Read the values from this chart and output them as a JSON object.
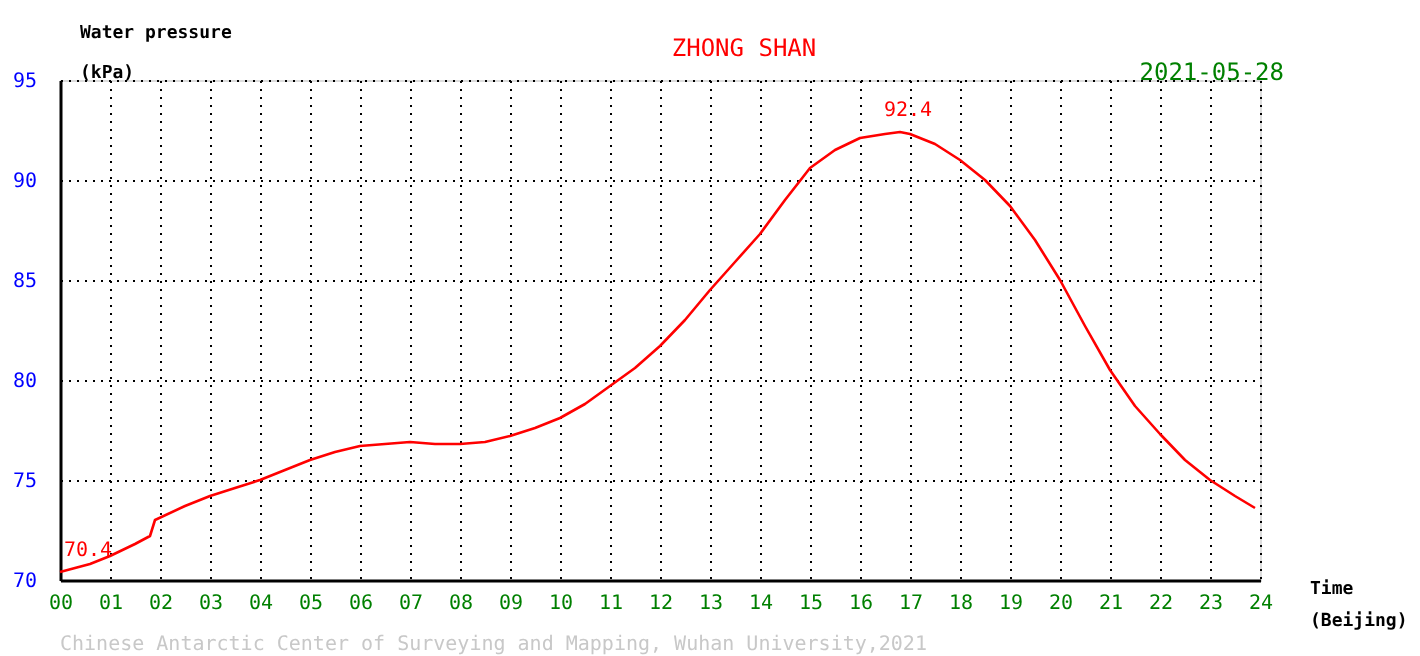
{
  "chart_data": {
    "type": "line",
    "title": "ZHONG SHAN",
    "subtitle": "2021-05-28",
    "ylabel": "Water pressure (kPa)",
    "xlabel": "Time (Beijing)",
    "x": [
      0,
      0.3,
      0.6,
      1,
      1.5,
      1.8,
      1.9,
      2.5,
      3,
      3.5,
      4,
      4.5,
      5,
      5.5,
      6,
      6.5,
      7,
      7.5,
      8,
      8.5,
      9,
      9.5,
      10,
      10.5,
      11,
      11.5,
      12,
      12.5,
      13,
      13.5,
      14,
      14.5,
      15,
      15.5,
      16,
      16.5,
      16.8,
      17,
      17.5,
      18,
      18.5,
      19,
      19.5,
      20,
      20.5,
      21,
      21.5,
      22,
      22.5,
      23,
      23.5,
      23.9
    ],
    "series": [
      {
        "color": "#ff0000",
        "values": [
          70.4,
          70.6,
          70.8,
          71.2,
          71.8,
          72.2,
          73.0,
          73.7,
          74.2,
          74.6,
          75.0,
          75.5,
          76.0,
          76.4,
          76.7,
          76.8,
          76.9,
          76.8,
          76.8,
          76.9,
          77.2,
          77.6,
          78.1,
          78.8,
          79.7,
          80.6,
          81.7,
          83.0,
          84.5,
          85.9,
          87.3,
          89.0,
          90.6,
          91.5,
          92.1,
          92.3,
          92.4,
          92.3,
          91.8,
          91.0,
          90.0,
          88.7,
          87.0,
          85.0,
          82.7,
          80.5,
          78.7,
          77.3,
          76.0,
          75.0,
          74.2,
          73.6
        ]
      }
    ],
    "xlim": [
      0,
      24
    ],
    "ylim": [
      70,
      95
    ],
    "xticks": [
      {
        "value": 0,
        "label": "00"
      },
      {
        "value": 1,
        "label": "01"
      },
      {
        "value": 2,
        "label": "02"
      },
      {
        "value": 3,
        "label": "03"
      },
      {
        "value": 4,
        "label": "04"
      },
      {
        "value": 5,
        "label": "05"
      },
      {
        "value": 6,
        "label": "06"
      },
      {
        "value": 7,
        "label": "07"
      },
      {
        "value": 8,
        "label": "08"
      },
      {
        "value": 9,
        "label": "09"
      },
      10,
      11,
      12,
      13,
      14,
      15,
      16,
      17,
      18,
      19,
      20,
      21,
      22,
      23,
      24
    ],
    "yticks": [
      70,
      75,
      80,
      85,
      90,
      95
    ],
    "grid": true,
    "marker": "none",
    "line_style": "solid",
    "annotations": [
      {
        "text": "92.4",
        "x": 16.8,
        "y": 92.4
      },
      {
        "text": "70.4",
        "x": 0.4,
        "y": 70.4
      },
      "Chinese Antarctic Center of Surveying and Mapping, Wuhan University,2021"
    ]
  }
}
